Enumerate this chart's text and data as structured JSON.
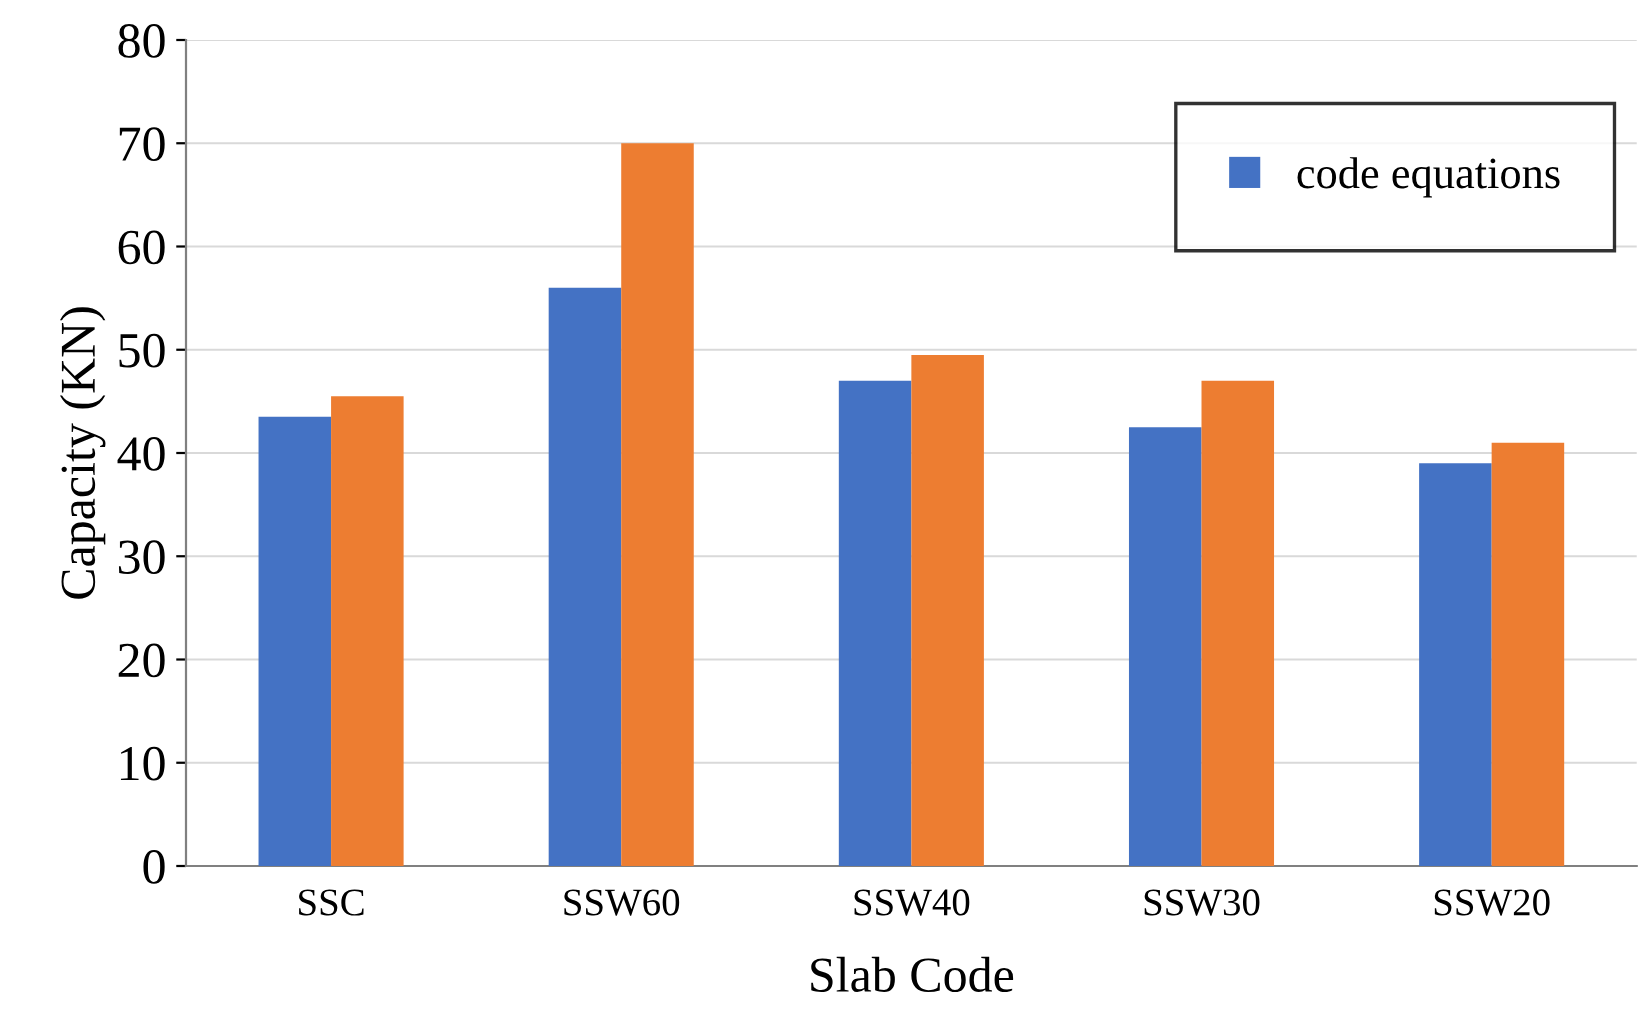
{
  "chart_data": {
    "type": "bar",
    "xlabel": "Slab Code",
    "ylabel": "Capacity (KN)",
    "categories": [
      "SSC",
      "SSW60",
      "SSW40",
      "SSW30",
      "SSW20"
    ],
    "series": [
      {
        "name": "code equations",
        "color": "#4472c4",
        "values": [
          43.5,
          56,
          47,
          42.5,
          39
        ]
      },
      {
        "color": "#ed7d31",
        "values": [
          45.5,
          70,
          49.5,
          47,
          41
        ]
      }
    ],
    "ylim": [
      0,
      80
    ],
    "yticks": [
      0,
      10,
      20,
      30,
      40,
      50,
      60,
      70,
      80
    ],
    "grid": "y",
    "legend": "top right"
  }
}
